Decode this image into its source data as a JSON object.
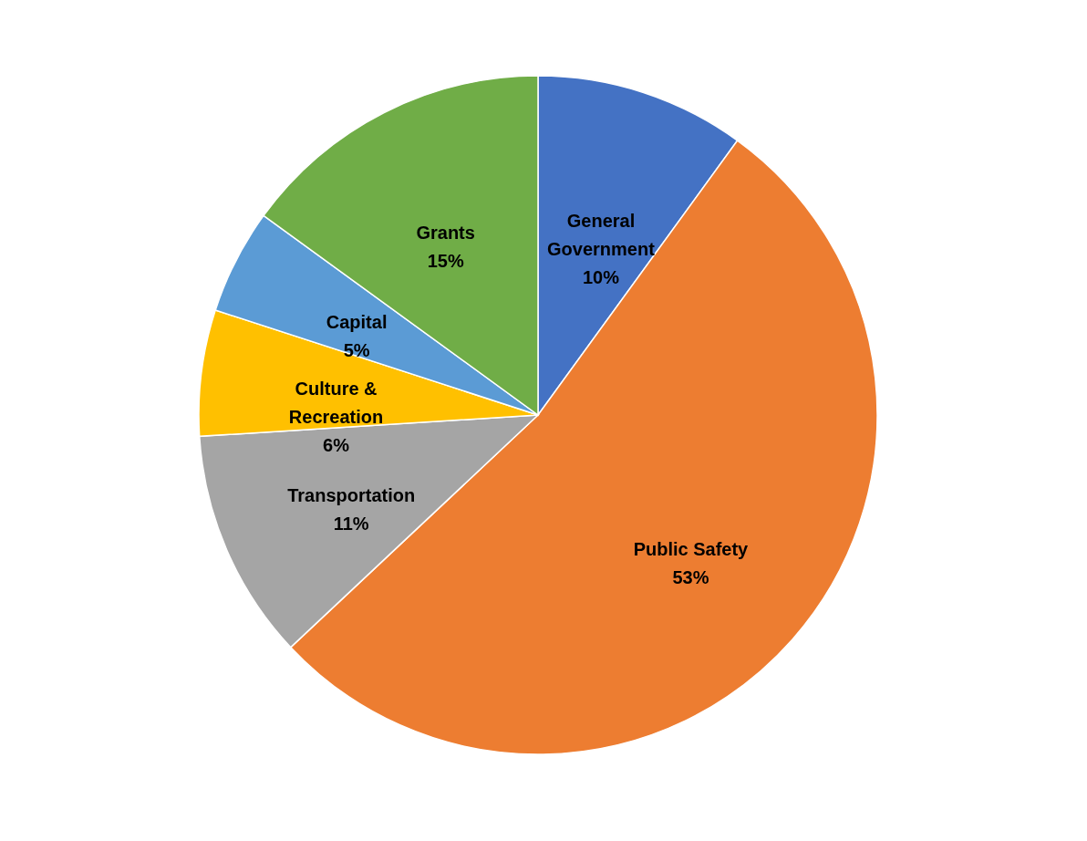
{
  "chart_data": {
    "type": "pie",
    "categories": [
      "General Government",
      "Public Safety",
      "Transportation",
      "Culture & Recreation",
      "Capital",
      "Grants"
    ],
    "values": [
      10,
      53,
      11,
      6,
      5,
      15
    ],
    "value_labels": [
      "10%",
      "53%",
      "11%",
      "6%",
      "5%",
      "15%"
    ],
    "colors": [
      "#4472c4",
      "#ed7d31",
      "#a5a5a5",
      "#ffc000",
      "#5b9bd5",
      "#70ad47"
    ],
    "legend": false
  }
}
